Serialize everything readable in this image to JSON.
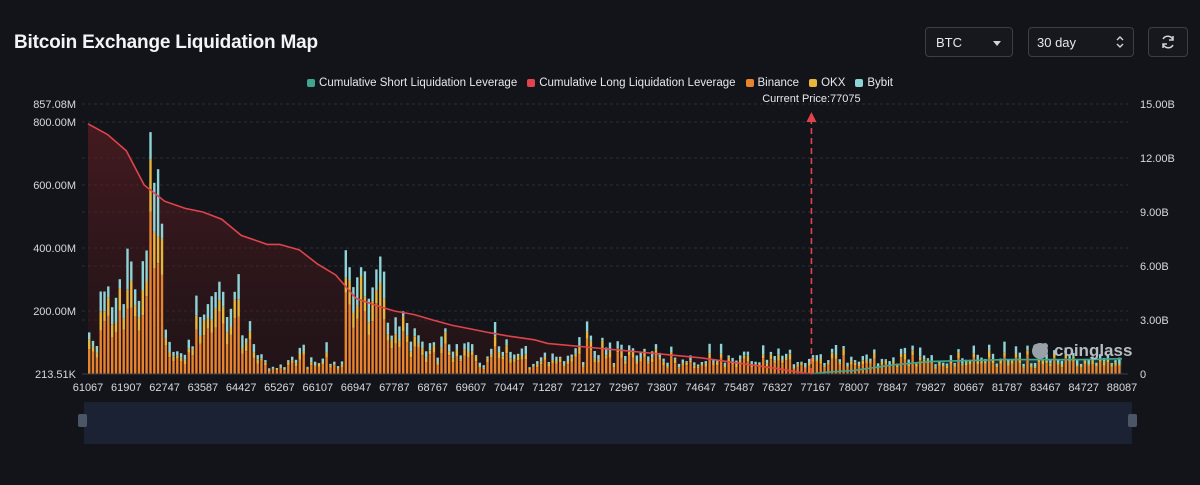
{
  "header": {
    "title": "Bitcoin Exchange Liquidation Map"
  },
  "controls": {
    "coin": "BTC",
    "range": "30 day",
    "refresh_icon": "refresh-icon"
  },
  "watermark": "coinglass",
  "colors": {
    "short": "#3fa58c",
    "long": "#e0434b",
    "binance": "#e8832e",
    "okx": "#e9b53a",
    "bybit": "#8ed3d6"
  },
  "chart_data": {
    "type": "bar",
    "legend": [
      "Cumulative Short Liquidation Leverage",
      "Cumulative Long Liquidation Leverage",
      "Binance",
      "OKX",
      "Bybit"
    ],
    "current_price_label": "Current Price:77075",
    "current_price": 77075,
    "x_ticks": [
      "61067",
      "61907",
      "62747",
      "63587",
      "64427",
      "65267",
      "66107",
      "66947",
      "67787",
      "68767",
      "69607",
      "70447",
      "71287",
      "72127",
      "72967",
      "73807",
      "74647",
      "75487",
      "76327",
      "77167",
      "78007",
      "78847",
      "79827",
      "80667",
      "81787",
      "83467",
      "84727",
      "88087"
    ],
    "y_left_ticks": [
      "857.08M",
      "800.00M",
      "600.00M",
      "400.00M",
      "200.00M",
      "213.51K"
    ],
    "y_left_range": [
      0,
      857.08
    ],
    "y_left_unit": "M",
    "y_right_ticks": [
      "15.00B",
      "12.00B",
      "9.00B",
      "6.00B",
      "3.00B",
      "0"
    ],
    "y_right_range": [
      0,
      15
    ],
    "y_right_unit": "B",
    "bar_totals_M": [
      132,
      105,
      89,
      262,
      262,
      278,
      212,
      242,
      301,
      222,
      398,
      357,
      269,
      232,
      358,
      392,
      768,
      607,
      650,
      477,
      141,
      102,
      70,
      72,
      66,
      61,
      109,
      88,
      249,
      181,
      189,
      222,
      247,
      260,
      293,
      261,
      181,
      207,
      261,
      317,
      123,
      113,
      168,
      95,
      60,
      63,
      44,
      18,
      23,
      19,
      30,
      22,
      44,
      55,
      45,
      83,
      93,
      23,
      53,
      39,
      35,
      49,
      101,
      32,
      39,
      25,
      40,
      393,
      339,
      276,
      307,
      339,
      326,
      239,
      275,
      332,
      373,
      325,
      163,
      122,
      180,
      151,
      199,
      162,
      103,
      145,
      123,
      103,
      72,
      98,
      101,
      52,
      119,
      145,
      94,
      71,
      95,
      59,
      97,
      101,
      95,
      60,
      36,
      28,
      56,
      80,
      165,
      88,
      70,
      110,
      70,
      62,
      64,
      81,
      89,
      22,
      32,
      41,
      53,
      68,
      38,
      65,
      55,
      55,
      41,
      58,
      62,
      82,
      117,
      38,
      167,
      122,
      73,
      60,
      115,
      84,
      100,
      35,
      104,
      93,
      57,
      91,
      82,
      59,
      68,
      80,
      56,
      72,
      95,
      67,
      49,
      36,
      87,
      52,
      32,
      46,
      41,
      59,
      37,
      30,
      38,
      41,
      96,
      44,
      43,
      96,
      36,
      59,
      51,
      43,
      59,
      71,
      71,
      41,
      39,
      37,
      91,
      45,
      70,
      57,
      81,
      58,
      64,
      77,
      31,
      38,
      39,
      35,
      48,
      60,
      60,
      63,
      35,
      44,
      80,
      92,
      47,
      89,
      36,
      55,
      44,
      39,
      57,
      62,
      49,
      78,
      34,
      48,
      47,
      41,
      53,
      33,
      80,
      83,
      46,
      90,
      38,
      84,
      59,
      50,
      60,
      31,
      43,
      36,
      33,
      60,
      35,
      79,
      50,
      45,
      45,
      90,
      61,
      52,
      48,
      93,
      64,
      33,
      49,
      103,
      47,
      48,
      88,
      68,
      32,
      90,
      34,
      35,
      57,
      48,
      64,
      44,
      76,
      47,
      42,
      84,
      58,
      67,
      44,
      32,
      48,
      47,
      56,
      36,
      63,
      51,
      63,
      35,
      44,
      52
    ],
    "cumulative_long_B": [
      [
        61067,
        13.9
      ],
      [
        61500,
        13.3
      ],
      [
        61907,
        12.4
      ],
      [
        62300,
        10.5
      ],
      [
        62747,
        9.6
      ],
      [
        63200,
        9.2
      ],
      [
        63587,
        9.0
      ],
      [
        64000,
        8.6
      ],
      [
        64427,
        7.7
      ],
      [
        65000,
        7.2
      ],
      [
        65267,
        7.2
      ],
      [
        65700,
        6.9
      ],
      [
        66107,
        6.1
      ],
      [
        66500,
        5.5
      ],
      [
        66947,
        4.2
      ],
      [
        67400,
        3.8
      ],
      [
        67787,
        3.5
      ],
      [
        68300,
        3.3
      ],
      [
        68767,
        3.0
      ],
      [
        69200,
        2.7
      ],
      [
        69607,
        2.5
      ],
      [
        70000,
        2.3
      ],
      [
        70447,
        2.1
      ],
      [
        71000,
        1.9
      ],
      [
        71287,
        1.7
      ],
      [
        72127,
        1.5
      ],
      [
        72967,
        1.3
      ],
      [
        73807,
        1.1
      ],
      [
        74647,
        0.9
      ],
      [
        75487,
        0.6
      ],
      [
        76327,
        0.3
      ],
      [
        76800,
        0.1
      ],
      [
        77075,
        0
      ]
    ],
    "cumulative_short_B": [
      [
        77075,
        0
      ],
      [
        77400,
        0.1
      ],
      [
        78007,
        0.2
      ],
      [
        78847,
        0.5
      ],
      [
        79827,
        0.7
      ],
      [
        80667,
        0.75
      ],
      [
        81787,
        0.8
      ],
      [
        83467,
        0.8
      ],
      [
        84727,
        0.8
      ],
      [
        88087,
        0.85
      ]
    ]
  }
}
